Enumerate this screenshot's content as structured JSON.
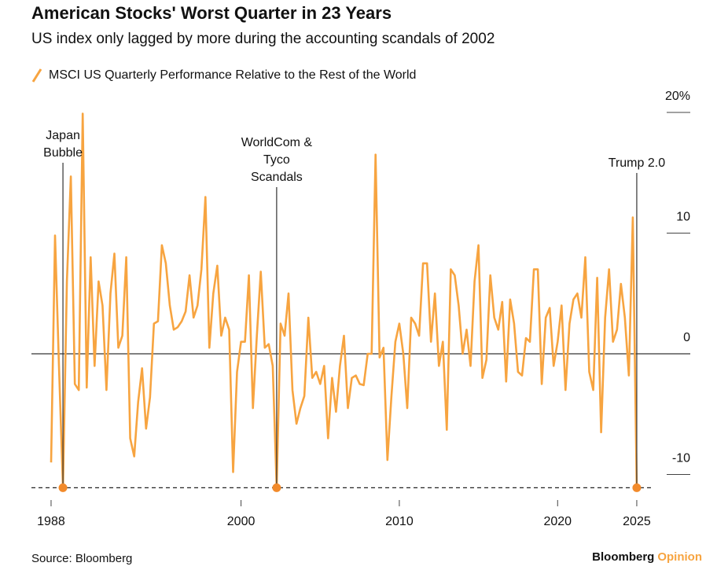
{
  "chart_data": {
    "type": "line",
    "title": "American Stocks' Worst Quarter in 23 Years",
    "subtitle": "US index only lagged by more during the accounting scandals of 2002",
    "source": "Source: Bloomberg",
    "brand": [
      "Bloomberg",
      "Opinion"
    ],
    "x": [
      1988,
      1988.25,
      1988.5,
      1988.75,
      1989,
      1989.25,
      1989.5,
      1989.75,
      1990,
      1990.25,
      1990.5,
      1990.75,
      1991,
      1991.25,
      1991.5,
      1991.75,
      1992,
      1992.25,
      1992.5,
      1992.75,
      1993,
      1993.25,
      1993.5,
      1993.75,
      1994,
      1994.25,
      1994.5,
      1994.75,
      1995,
      1995.25,
      1995.5,
      1995.75,
      1996,
      1996.25,
      1996.5,
      1996.75,
      1997,
      1997.25,
      1997.5,
      1997.75,
      1998,
      1998.25,
      1998.5,
      1998.75,
      1999,
      1999.25,
      1999.5,
      1999.75,
      2000,
      2000.25,
      2000.5,
      2000.75,
      2001,
      2001.25,
      2001.5,
      2001.75,
      2002,
      2002.25,
      2002.5,
      2002.75,
      2003,
      2003.25,
      2003.5,
      2003.75,
      2004,
      2004.25,
      2004.5,
      2004.75,
      2005,
      2005.25,
      2005.5,
      2005.75,
      2006,
      2006.25,
      2006.5,
      2006.75,
      2007,
      2007.25,
      2007.5,
      2007.75,
      2008,
      2008.25,
      2008.5,
      2008.75,
      2009,
      2009.25,
      2009.5,
      2009.75,
      2010,
      2010.25,
      2010.5,
      2010.75,
      2011,
      2011.25,
      2011.5,
      2011.75,
      2012,
      2012.25,
      2012.5,
      2012.75,
      2013,
      2013.25,
      2013.5,
      2013.75,
      2014,
      2014.25,
      2014.5,
      2014.75,
      2015,
      2015.25,
      2015.5,
      2015.75,
      2016,
      2016.25,
      2016.5,
      2016.75,
      2017,
      2017.25,
      2017.5,
      2017.75,
      2018,
      2018.25,
      2018.5,
      2018.75,
      2019,
      2019.25,
      2019.5,
      2019.75,
      2020,
      2020.25,
      2020.5,
      2020.75,
      2021,
      2021.25,
      2021.5,
      2021.75,
      2022,
      2022.25,
      2022.5,
      2022.75,
      2023,
      2023.25,
      2023.5,
      2023.75,
      2024,
      2024.25,
      2024.5,
      2024.75,
      2025
    ],
    "series": [
      {
        "name": "MSCI US Quarterly Performance Relative to the Rest of the World",
        "color": "#f7a440",
        "values": [
          -9,
          9.8,
          -1,
          -11.1,
          6,
          14.7,
          -2.5,
          -3,
          19.9,
          -2.8,
          8,
          -1,
          6,
          4,
          -3,
          5,
          8.3,
          0.5,
          1.5,
          8,
          -7,
          -8.5,
          -4,
          -1.2,
          -6.2,
          -3.6,
          2.5,
          2.7,
          9,
          7.5,
          4,
          2,
          2.2,
          2.7,
          3.5,
          6.5,
          3,
          4,
          7,
          13,
          0.5,
          5,
          7.3,
          1.5,
          3,
          2,
          -9.8,
          -1.5,
          1,
          1,
          6.5,
          -4.5,
          1.5,
          6.8,
          0.5,
          0.8,
          -1,
          -11.1,
          2.5,
          1.5,
          5,
          -3,
          -5.8,
          -4.5,
          -3.5,
          3,
          -2,
          -1.5,
          -2.5,
          -1,
          -7,
          -2,
          -4.8,
          -1,
          1.5,
          -4.5,
          -2,
          -1.8,
          -2.5,
          -2.6,
          0,
          0,
          16.5,
          -0.3,
          0.5,
          -8.8,
          -3.5,
          1,
          2.5,
          0,
          -4.5,
          3,
          2.5,
          1.5,
          7.5,
          7.5,
          1,
          5,
          -1,
          1,
          -6.3,
          7,
          6.5,
          4,
          0,
          2,
          -1,
          6,
          9,
          -2,
          -0.5,
          6.5,
          3,
          2,
          4.3,
          -2.3,
          4.5,
          2.5,
          -1.5,
          -1.8,
          1.3,
          1,
          7,
          7,
          -2.5,
          3,
          3.8,
          -1,
          1,
          4,
          -3,
          2.5,
          4.5,
          5,
          3,
          8,
          -1.5,
          -3,
          6.3,
          -6.5,
          3,
          7,
          1,
          2,
          5.8,
          3,
          -1.8,
          11.3,
          -11.1
        ]
      }
    ],
    "xlim": [
      1986.76,
      2028.38
    ],
    "xticks": [
      1988,
      2000,
      2010,
      2020,
      2025
    ],
    "ylim": [
      -12,
      21
    ],
    "yticks": [
      {
        "value": 20,
        "label": "20%"
      },
      10,
      0,
      -10
    ],
    "hline": -11.1,
    "annotations": [
      {
        "x": 1988.75,
        "lines": [
          "Japan",
          "Bubble"
        ]
      },
      {
        "x": 2002.25,
        "lines": [
          "WorldCom &",
          "Tyco",
          "Scandals"
        ]
      },
      {
        "x": 2025,
        "lines": [
          "Trump 2.0"
        ]
      }
    ]
  }
}
